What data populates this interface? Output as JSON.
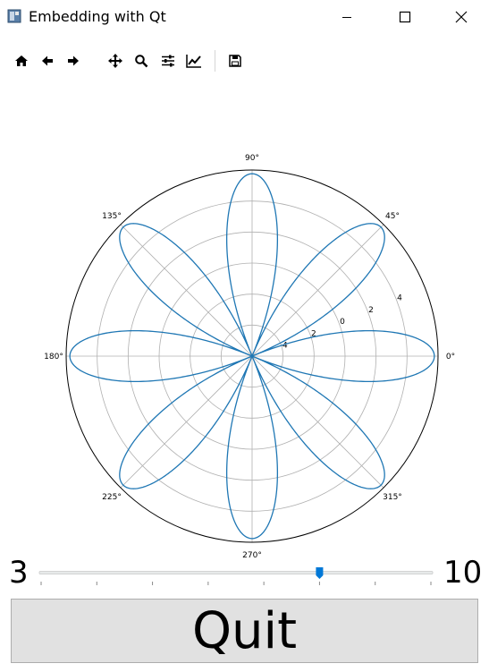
{
  "window": {
    "title": "Embedding with Qt",
    "controls": [
      "minimize-icon",
      "maximize-icon",
      "close-icon"
    ]
  },
  "toolbar": {
    "buttons": [
      "home-icon",
      "back-icon",
      "forward-icon",
      "pan-icon",
      "zoom-icon",
      "configure-subplots-icon",
      "edit-axis-icon",
      "save-icon"
    ]
  },
  "chart_data": {
    "type": "line",
    "projection": "polar",
    "function": "r = cos(4*theta)",
    "theta_tick_labels": [
      "0°",
      "45°",
      "90°",
      "135°",
      "180°",
      "225°",
      "270°",
      "315°"
    ],
    "r_tick_labels": [
      "4",
      "2",
      "0",
      "2",
      "4"
    ],
    "series": [
      {
        "color": "#1f77b4",
        "petals": 8
      }
    ],
    "grid": true
  },
  "slider": {
    "min_label": "3",
    "max_label": "10",
    "min": 3,
    "max": 10,
    "value": 8
  },
  "quit_button": {
    "label": "Quit"
  }
}
